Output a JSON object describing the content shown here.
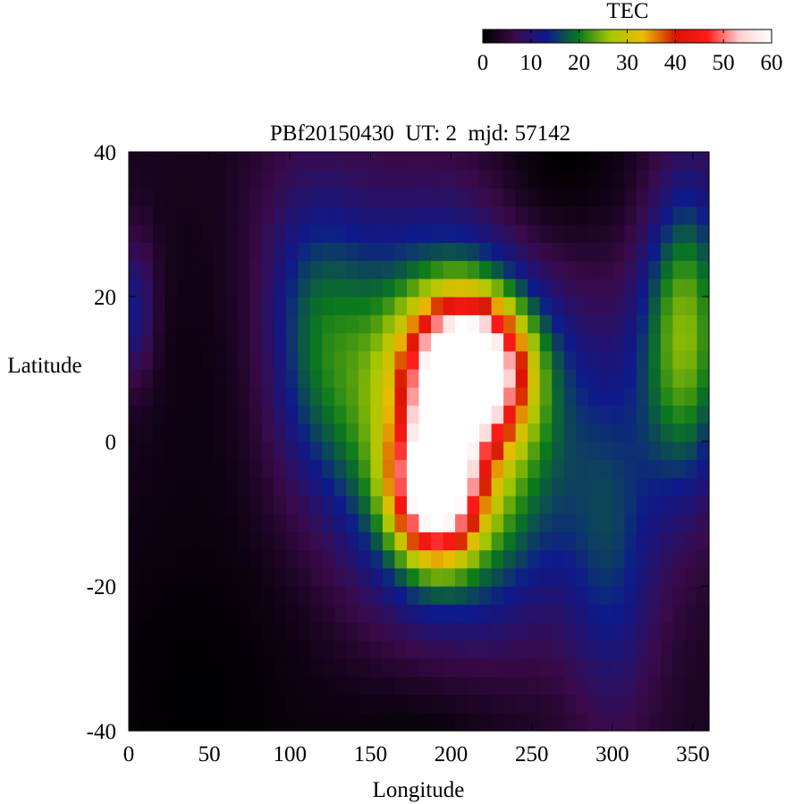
{
  "chart_data": {
    "type": "heatmap",
    "title": "PBf20150430  UT: 2  mjd: 57142",
    "xlabel": "Longitude",
    "ylabel": "Latitude",
    "xlim": [
      0,
      360
    ],
    "ylim": [
      -40,
      40
    ],
    "xticks": [
      "0",
      "50",
      "100",
      "150",
      "200",
      "250",
      "300",
      "350"
    ],
    "yticks": [
      "40",
      "20",
      "0",
      "-20",
      "-40"
    ],
    "colorbar": {
      "label": "TEC",
      "range": [
        0,
        60
      ],
      "ticks": [
        "0",
        "10",
        "20",
        "30",
        "40",
        "50",
        "60"
      ],
      "colormap": [
        "#000000",
        "#3a0a4a",
        "#0e1a8c",
        "#0a7a1c",
        "#a8c800",
        "#e8bc00",
        "#d81400",
        "#ff1a1a",
        "#ffd0d0",
        "#ffffff"
      ]
    },
    "grid_step": {
      "lon": 7.5,
      "lat": 2.5
    },
    "structure": {
      "peak_tec": 60,
      "peak_region": {
        "lon": [
          180,
          250
        ],
        "lat": [
          -10,
          17
        ]
      },
      "anomaly_crest_north": {
        "lon": 205,
        "lat": 10,
        "tec": 60
      },
      "anomaly_crest_south": {
        "lon": 185,
        "lat": -5,
        "tec": 58
      },
      "low_tec_regions": [
        {
          "lon": [
            0,
            120
          ],
          "lat": [
            -40,
            -8
          ]
        },
        {
          "lon": [
            210,
            320
          ],
          "lat": [
            25,
            40
          ]
        }
      ]
    }
  }
}
